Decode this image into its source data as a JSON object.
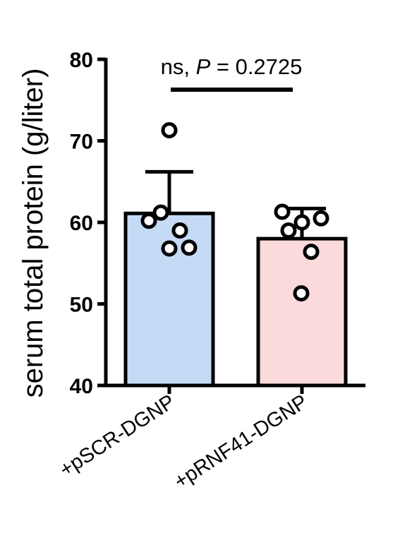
{
  "chart_data": {
    "type": "bar",
    "title": "",
    "xlabel": "",
    "ylabel": "serum total protein (g/liter)",
    "ylim": [
      40,
      80
    ],
    "yticks": [
      40,
      50,
      60,
      70,
      80
    ],
    "categories": [
      "+pSCR-DGNP",
      "+pRNF41-DGNP"
    ],
    "values": [
      61.1,
      58.0
    ],
    "error_upper": [
      66.2,
      61.7
    ],
    "bar_colors": [
      "#c5daf5",
      "#fadadb"
    ],
    "points": [
      [
        71.3,
        61.2,
        59.0,
        60.2,
        56.8,
        56.9
      ],
      [
        61.3,
        60.0,
        60.5,
        59.0,
        56.4,
        51.3
      ]
    ],
    "significance": {
      "prefix": "ns, ",
      "p_symbol": "P",
      "suffix": " = 0.2725",
      "between": [
        "+pSCR-DGNP",
        "+pRNF41-DGNP"
      ]
    },
    "grid": false,
    "legend": "none"
  }
}
